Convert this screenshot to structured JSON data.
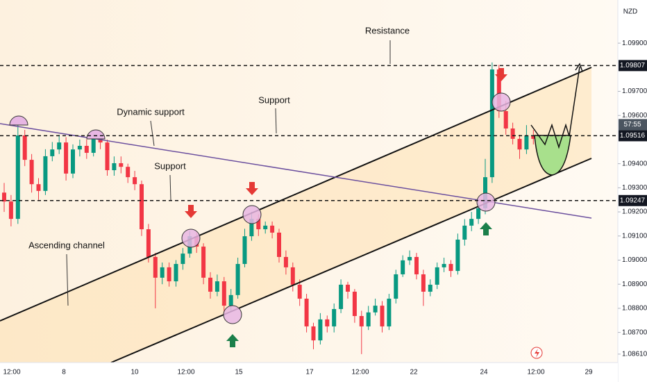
{
  "chart_data": {
    "type": "candlestick",
    "currency": "NZD",
    "countdown": "57:55",
    "up_color": "#089981",
    "down_color": "#f23645",
    "ylim": [
      1.08575,
      1.10079
    ],
    "yticks": [
      {
        "value": 1.099,
        "label": "1.09900"
      },
      {
        "value": 1.097,
        "label": "1.09700"
      },
      {
        "value": 1.096,
        "label": "1.09600"
      },
      {
        "value": 1.094,
        "label": "1.09400"
      },
      {
        "value": 1.093,
        "label": "1.09300"
      },
      {
        "value": 1.092,
        "label": "1.09200"
      },
      {
        "value": 1.091,
        "label": "1.09100"
      },
      {
        "value": 1.09,
        "label": "1.09000"
      },
      {
        "value": 1.089,
        "label": "1.08900"
      },
      {
        "value": 1.088,
        "label": "1.08800"
      },
      {
        "value": 1.087,
        "label": "1.08700"
      },
      {
        "value": 1.0861,
        "label": "1.08610"
      }
    ],
    "levels": [
      1.09807,
      1.09516,
      1.09247
    ],
    "x_labels": [
      "12:00",
      "8",
      "10",
      "12:00",
      "15",
      "17",
      "12:00",
      "22",
      "24",
      "12:00",
      "29"
    ],
    "annotations": [
      "Resistance",
      "Support",
      "Dynamic support",
      "Support",
      "Ascending channel"
    ],
    "ohlc": [
      [
        1.0928,
        1.0932,
        1.092,
        1.09243
      ],
      [
        1.09243,
        1.0927,
        1.0914,
        1.09171
      ],
      [
        1.09171,
        1.0956,
        1.0915,
        1.09517
      ],
      [
        1.09517,
        1.0954,
        1.0939,
        1.09416
      ],
      [
        1.09416,
        1.0944,
        1.0928,
        1.09315
      ],
      [
        1.09315,
        1.0934,
        1.0925,
        1.09287
      ],
      [
        1.09287,
        1.0946,
        1.0927,
        1.09431
      ],
      [
        1.09431,
        1.0949,
        1.0941,
        1.09459
      ],
      [
        1.09459,
        1.0952,
        1.0944,
        1.09488
      ],
      [
        1.09488,
        1.0951,
        1.0933,
        1.09359
      ],
      [
        1.09359,
        1.0948,
        1.0934,
        1.09459
      ],
      [
        1.09459,
        1.095,
        1.0943,
        1.09474
      ],
      [
        1.09474,
        1.095,
        1.0942,
        1.09445
      ],
      [
        1.09445,
        1.0953,
        1.0943,
        1.09503
      ],
      [
        1.09503,
        1.0953,
        1.0946,
        1.09488
      ],
      [
        1.09488,
        1.095,
        1.0935,
        1.09373
      ],
      [
        1.09373,
        1.0943,
        1.0935,
        1.09402
      ],
      [
        1.09402,
        1.0943,
        1.0936,
        1.09387
      ],
      [
        1.09387,
        1.094,
        1.0932,
        1.09344
      ],
      [
        1.09344,
        1.0937,
        1.0929,
        1.09315
      ],
      [
        1.09315,
        1.0933,
        1.091,
        1.09128
      ],
      [
        1.09128,
        1.0915,
        1.0899,
        1.09013
      ],
      [
        1.09013,
        1.0903,
        1.088,
        1.08927
      ],
      [
        1.08927,
        1.0899,
        1.089,
        1.0897
      ],
      [
        1.0897,
        1.0899,
        1.0889,
        1.08912
      ],
      [
        1.08912,
        1.09,
        1.0889,
        1.08984
      ],
      [
        1.08984,
        1.0905,
        1.0896,
        1.09027
      ],
      [
        1.09027,
        1.0912,
        1.0901,
        1.09099
      ],
      [
        1.09099,
        1.0912,
        1.0903,
        1.09056
      ],
      [
        1.09056,
        1.0907,
        1.089,
        1.08927
      ],
      [
        1.08927,
        1.0895,
        1.0884,
        1.08869
      ],
      [
        1.08869,
        1.0894,
        1.0885,
        1.08912
      ],
      [
        1.08912,
        1.0893,
        1.0878,
        1.08811
      ],
      [
        1.08811,
        1.0888,
        1.0879,
        1.08855
      ],
      [
        1.08855,
        1.0901,
        1.0884,
        1.08984
      ],
      [
        1.08984,
        1.0913,
        1.0897,
        1.09099
      ],
      [
        1.09099,
        1.092,
        1.0908,
        1.09171
      ],
      [
        1.09171,
        1.0919,
        1.091,
        1.09128
      ],
      [
        1.09128,
        1.0916,
        1.0911,
        1.09143
      ],
      [
        1.09143,
        1.0916,
        1.0909,
        1.09114
      ],
      [
        1.09114,
        1.0913,
        1.0899,
        1.09013
      ],
      [
        1.09013,
        1.0904,
        1.0894,
        1.0897
      ],
      [
        1.0897,
        1.0899,
        1.0887,
        1.08898
      ],
      [
        1.08898,
        1.0892,
        1.0881,
        1.0884
      ],
      [
        1.0884,
        1.0886,
        1.087,
        1.08725
      ],
      [
        1.08725,
        1.0874,
        1.0863,
        1.08667
      ],
      [
        1.08667,
        1.0878,
        1.0865,
        1.08754
      ],
      [
        1.08754,
        1.0877,
        1.087,
        1.08725
      ],
      [
        1.08725,
        1.0882,
        1.087,
        1.08797
      ],
      [
        1.08797,
        1.0892,
        1.0878,
        1.08898
      ],
      [
        1.08898,
        1.0891,
        1.0884,
        1.08869
      ],
      [
        1.08869,
        1.0888,
        1.0874,
        1.08768
      ],
      [
        1.08768,
        1.0879,
        1.0861,
        1.08725
      ],
      [
        1.08725,
        1.0881,
        1.0871,
        1.08783
      ],
      [
        1.08783,
        1.0884,
        1.0877,
        1.08811
      ],
      [
        1.08811,
        1.0883,
        1.087,
        1.08725
      ],
      [
        1.08725,
        1.0886,
        1.0871,
        1.0884
      ],
      [
        1.0884,
        1.0896,
        1.0882,
        1.08941
      ],
      [
        1.08941,
        1.0902,
        1.0893,
        1.08999
      ],
      [
        1.08999,
        1.0904,
        1.0898,
        1.09013
      ],
      [
        1.09013,
        1.0903,
        1.0892,
        1.08941
      ],
      [
        1.08941,
        1.0896,
        1.0881,
        1.08869
      ],
      [
        1.08869,
        1.0892,
        1.0885,
        1.08898
      ],
      [
        1.08898,
        1.0899,
        1.0888,
        1.0897
      ],
      [
        1.0897,
        1.0901,
        1.0895,
        1.08984
      ],
      [
        1.08984,
        1.09,
        1.0893,
        1.08955
      ],
      [
        1.08955,
        1.0911,
        1.0894,
        1.09085
      ],
      [
        1.09085,
        1.0917,
        1.0906,
        1.09143
      ],
      [
        1.09143,
        1.092,
        1.0912,
        1.09171
      ],
      [
        1.09171,
        1.0924,
        1.0915,
        1.09215
      ],
      [
        1.09215,
        1.0942,
        1.0919,
        1.09344
      ],
      [
        1.09344,
        1.0982,
        1.0932,
        1.09791
      ],
      [
        1.09791,
        1.0981,
        1.0959,
        1.09618
      ],
      [
        1.09618,
        1.0966,
        1.0952,
        1.09546
      ],
      [
        1.09546,
        1.0957,
        1.0948,
        1.09503
      ],
      [
        1.09503,
        1.0952,
        1.0942,
        1.09459
      ],
      [
        1.09459,
        1.0956,
        1.0944,
        1.09517
      ],
      [
        1.09517,
        1.0954,
        1.0948,
        1.09503
      ]
    ]
  }
}
